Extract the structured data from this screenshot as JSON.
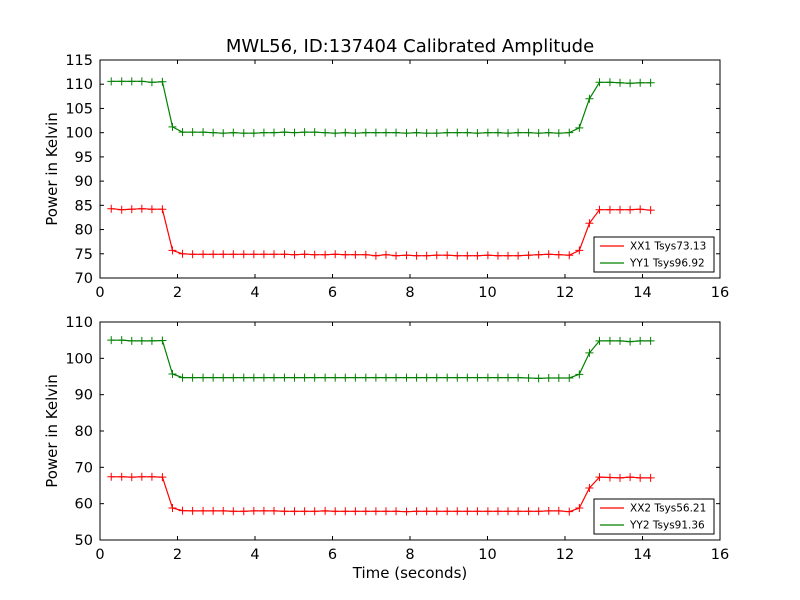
{
  "chart_data": [
    {
      "type": "line",
      "title": "MWL56, ID:137404 Calibrated Amplitude",
      "xlabel": "",
      "ylabel": "Power in Kelvin",
      "xlim": [
        0,
        16
      ],
      "ylim": [
        70,
        115
      ],
      "xticks": [
        0,
        2,
        4,
        6,
        8,
        10,
        12,
        14,
        16
      ],
      "yticks": [
        70,
        75,
        80,
        85,
        90,
        95,
        100,
        105,
        110,
        115
      ],
      "grid": false,
      "legend_position": "lower-right",
      "x": [
        0.29,
        0.56,
        0.82,
        1.08,
        1.34,
        1.61,
        1.87,
        2.13,
        2.39,
        2.66,
        2.92,
        3.18,
        3.44,
        3.71,
        3.97,
        4.23,
        4.49,
        4.76,
        5.02,
        5.28,
        5.54,
        5.81,
        6.07,
        6.33,
        6.59,
        6.86,
        7.12,
        7.38,
        7.64,
        7.91,
        8.17,
        8.43,
        8.69,
        8.96,
        9.22,
        9.48,
        9.74,
        10.01,
        10.27,
        10.53,
        10.79,
        11.06,
        11.32,
        11.58,
        11.84,
        12.11,
        12.37,
        12.63,
        12.89,
        13.16,
        13.42,
        13.68,
        13.94,
        14.21
      ],
      "series": [
        {
          "name": "XX1 Tsys73.13",
          "color": "#ff0000",
          "values": [
            84.3,
            84.1,
            84.2,
            84.3,
            84.2,
            84.2,
            75.7,
            75.0,
            74.9,
            74.9,
            74.9,
            74.9,
            74.9,
            74.9,
            74.9,
            74.9,
            74.9,
            74.9,
            74.8,
            74.9,
            74.8,
            74.8,
            74.9,
            74.8,
            74.8,
            74.8,
            74.6,
            74.8,
            74.6,
            74.7,
            74.6,
            74.6,
            74.7,
            74.7,
            74.6,
            74.6,
            74.6,
            74.7,
            74.6,
            74.6,
            74.6,
            74.7,
            74.8,
            74.9,
            74.8,
            74.7,
            75.7,
            81.3,
            84.1,
            84.1,
            84.1,
            84.1,
            84.2,
            84.0
          ]
        },
        {
          "name": "YY1 Tsys96.92",
          "color": "#008000",
          "values": [
            110.6,
            110.6,
            110.6,
            110.6,
            110.4,
            110.5,
            101.2,
            100.1,
            100.1,
            100.1,
            100.0,
            99.9,
            100.0,
            99.9,
            99.9,
            100.0,
            100.0,
            100.1,
            100.0,
            100.1,
            100.1,
            100.0,
            99.9,
            100.0,
            99.9,
            100.0,
            100.0,
            100.0,
            100.0,
            99.9,
            100.0,
            99.9,
            99.9,
            100.0,
            100.0,
            100.0,
            99.9,
            100.0,
            100.0,
            99.9,
            100.0,
            100.0,
            99.9,
            100.0,
            99.9,
            100.0,
            101.0,
            107.0,
            110.4,
            110.4,
            110.3,
            110.2,
            110.3,
            110.3
          ]
        }
      ]
    },
    {
      "type": "line",
      "title": "",
      "xlabel": "Time (seconds)",
      "ylabel": "Power in Kelvin",
      "xlim": [
        0,
        16
      ],
      "ylim": [
        50,
        110
      ],
      "xticks": [
        0,
        2,
        4,
        6,
        8,
        10,
        12,
        14,
        16
      ],
      "yticks": [
        50,
        60,
        70,
        80,
        90,
        100,
        110
      ],
      "grid": false,
      "legend_position": "lower-right",
      "x": [
        0.29,
        0.56,
        0.82,
        1.08,
        1.34,
        1.61,
        1.87,
        2.13,
        2.39,
        2.66,
        2.92,
        3.18,
        3.44,
        3.71,
        3.97,
        4.23,
        4.49,
        4.76,
        5.02,
        5.28,
        5.54,
        5.81,
        6.07,
        6.33,
        6.59,
        6.86,
        7.12,
        7.38,
        7.64,
        7.91,
        8.17,
        8.43,
        8.69,
        8.96,
        9.22,
        9.48,
        9.74,
        10.01,
        10.27,
        10.53,
        10.79,
        11.06,
        11.32,
        11.58,
        11.84,
        12.11,
        12.37,
        12.63,
        12.89,
        13.16,
        13.42,
        13.68,
        13.94,
        14.21
      ],
      "series": [
        {
          "name": "XX2 Tsys56.21",
          "color": "#ff0000",
          "values": [
            67.4,
            67.4,
            67.3,
            67.4,
            67.4,
            67.3,
            58.8,
            58.1,
            58.0,
            58.0,
            58.0,
            58.0,
            57.9,
            57.9,
            58.0,
            58.0,
            58.0,
            57.9,
            57.9,
            57.9,
            57.9,
            58.0,
            57.9,
            57.9,
            57.9,
            57.9,
            57.9,
            57.9,
            57.9,
            57.8,
            57.9,
            57.9,
            57.9,
            57.9,
            57.9,
            57.9,
            57.9,
            57.9,
            57.9,
            57.9,
            57.9,
            57.9,
            57.9,
            58.0,
            58.0,
            57.8,
            58.8,
            64.3,
            67.3,
            67.2,
            67.1,
            67.3,
            67.1,
            67.1
          ]
        },
        {
          "name": "YY2 Tsys91.36",
          "color": "#008000",
          "values": [
            105.0,
            105.0,
            104.8,
            104.8,
            104.8,
            104.9,
            95.7,
            94.7,
            94.7,
            94.7,
            94.7,
            94.7,
            94.7,
            94.7,
            94.7,
            94.7,
            94.7,
            94.7,
            94.7,
            94.7,
            94.7,
            94.7,
            94.7,
            94.7,
            94.7,
            94.7,
            94.7,
            94.7,
            94.7,
            94.7,
            94.7,
            94.7,
            94.7,
            94.7,
            94.7,
            94.7,
            94.7,
            94.7,
            94.7,
            94.7,
            94.7,
            94.6,
            94.5,
            94.6,
            94.6,
            94.6,
            95.6,
            101.5,
            104.8,
            104.8,
            104.8,
            104.6,
            104.8,
            104.8
          ]
        }
      ]
    }
  ]
}
